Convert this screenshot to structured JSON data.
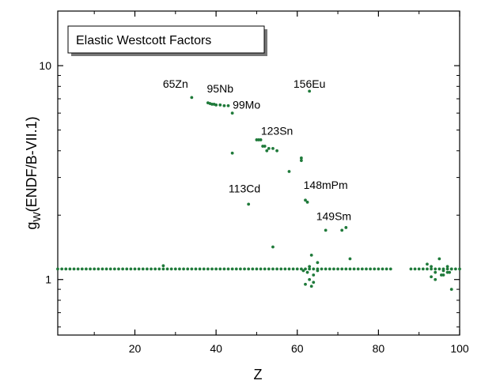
{
  "chart_data": {
    "type": "scatter",
    "xlabel": "Z",
    "ylabel_main": "g",
    "ylabel_sub": "W",
    "ylabel_rest": "(ENDF/B-VII.1)",
    "xlim": [
      1,
      100
    ],
    "ylim": [
      0.55,
      18
    ],
    "y_scale": "log",
    "x_ticks": [
      20,
      40,
      60,
      80,
      100
    ],
    "y_ticks": [
      1,
      10
    ],
    "legend": "Elastic Westcott Factors",
    "legend_position": "top-left",
    "marker_color": "#1f7a3a",
    "annotations": [
      {
        "text": "65Zn",
        "x": 30.0,
        "y": 7.9
      },
      {
        "text": "95Nb",
        "x": 41.0,
        "y": 7.5
      },
      {
        "text": "99Mo",
        "x": 47.5,
        "y": 6.3
      },
      {
        "text": "156Eu",
        "x": 63.0,
        "y": 7.9
      },
      {
        "text": "123Sn",
        "x": 55.0,
        "y": 4.75
      },
      {
        "text": "113Cd",
        "x": 47.0,
        "y": 2.55
      },
      {
        "text": "148mPm",
        "x": 67.0,
        "y": 2.65
      },
      {
        "text": "149Sm",
        "x": 69.0,
        "y": 1.9
      }
    ],
    "series": [
      {
        "x": [
          1,
          2,
          3,
          4,
          5,
          6,
          7,
          8,
          9,
          10,
          11,
          12,
          13,
          14,
          15,
          16,
          17,
          18,
          19,
          20,
          21,
          22,
          23,
          24,
          25,
          26,
          27,
          28,
          29,
          30,
          31,
          32,
          33,
          34,
          35,
          36,
          37,
          38,
          39,
          40,
          41,
          42,
          43,
          44,
          45,
          46,
          47,
          48,
          49,
          50,
          51,
          52,
          53,
          54,
          55,
          56,
          57,
          58,
          59,
          60,
          61,
          62,
          63,
          64,
          65,
          66,
          67,
          68,
          69,
          70,
          71,
          72,
          73,
          74,
          75,
          76,
          77,
          78,
          79,
          80,
          81,
          82,
          83,
          88,
          89,
          90,
          91,
          92,
          93,
          94,
          95,
          96,
          97,
          98,
          99,
          100,
          27,
          34,
          38,
          38.5,
          39,
          39.5,
          40,
          41,
          42,
          43,
          44,
          44,
          48,
          50,
          50.5,
          51,
          51.5,
          52,
          52.5,
          53,
          54,
          55,
          58,
          61,
          61,
          62,
          62.5,
          63,
          63.5,
          54,
          61.5,
          63,
          65,
          67,
          71,
          72,
          73,
          92,
          93,
          94,
          95,
          95.5,
          96,
          97,
          97.5,
          98,
          62,
          62.5,
          63,
          63.5,
          64,
          64,
          65,
          93,
          94,
          96,
          97,
          98
        ],
        "y": [
          1.12,
          1.12,
          1.12,
          1.12,
          1.12,
          1.12,
          1.12,
          1.12,
          1.12,
          1.12,
          1.12,
          1.12,
          1.12,
          1.12,
          1.12,
          1.12,
          1.12,
          1.12,
          1.12,
          1.12,
          1.12,
          1.12,
          1.12,
          1.12,
          1.12,
          1.12,
          1.12,
          1.12,
          1.12,
          1.12,
          1.12,
          1.12,
          1.12,
          1.12,
          1.12,
          1.12,
          1.12,
          1.12,
          1.12,
          1.12,
          1.12,
          1.12,
          1.12,
          1.12,
          1.12,
          1.12,
          1.12,
          1.12,
          1.12,
          1.12,
          1.12,
          1.12,
          1.12,
          1.12,
          1.12,
          1.12,
          1.12,
          1.12,
          1.12,
          1.12,
          1.12,
          1.12,
          1.12,
          1.12,
          1.12,
          1.12,
          1.12,
          1.12,
          1.12,
          1.12,
          1.12,
          1.12,
          1.12,
          1.12,
          1.12,
          1.12,
          1.12,
          1.12,
          1.12,
          1.12,
          1.12,
          1.12,
          1.12,
          1.12,
          1.12,
          1.12,
          1.12,
          1.12,
          1.12,
          1.12,
          1.12,
          1.12,
          1.12,
          1.12,
          1.12,
          1.12,
          1.16,
          7.1,
          6.7,
          6.65,
          6.6,
          6.6,
          6.55,
          6.55,
          6.5,
          6.5,
          6.0,
          3.9,
          2.25,
          4.5,
          4.5,
          4.5,
          4.2,
          4.2,
          4.0,
          4.1,
          4.1,
          4.0,
          3.2,
          3.7,
          3.6,
          2.35,
          2.3,
          7.6,
          1.3,
          1.42,
          1.1,
          1.15,
          1.2,
          1.7,
          1.7,
          1.75,
          1.25,
          1.18,
          1.15,
          1.08,
          1.25,
          1.05,
          1.1,
          1.15,
          1.08,
          1.12,
          0.95,
          1.08,
          1.0,
          0.93,
          0.97,
          1.05,
          1.1,
          1.03,
          1.0,
          1.05,
          1.08,
          0.9
        ]
      }
    ]
  }
}
